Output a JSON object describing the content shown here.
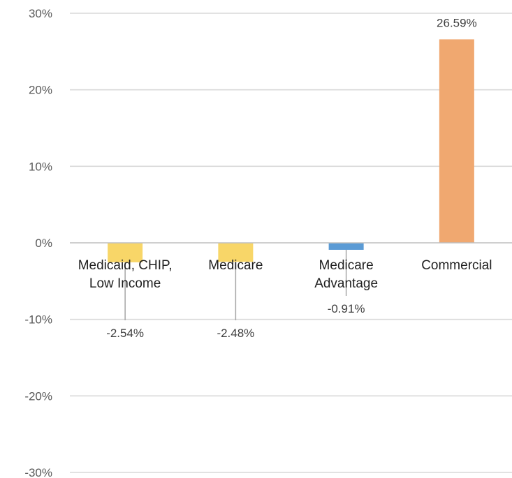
{
  "chart_data": {
    "type": "bar",
    "categories": [
      [
        "Medicaid, CHIP,",
        "Low Income"
      ],
      [
        "Medicare"
      ],
      [
        "Medicare",
        "Advantage"
      ],
      [
        "Commercial"
      ]
    ],
    "values": [
      -2.54,
      -2.48,
      -0.91,
      26.59
    ],
    "data_labels": [
      "-2.54%",
      "-2.48%",
      "-0.91%",
      "26.59%"
    ],
    "colors": [
      "#F8D668",
      "#F8D668",
      "#5B9BD5",
      "#F0A870"
    ],
    "ylim": [
      -30,
      30
    ],
    "yticks": [
      30,
      20,
      10,
      0,
      -10,
      -20,
      -30
    ],
    "ytick_labels": [
      "30%",
      "20%",
      "10%",
      "0%",
      "-10%",
      "-20%",
      "-30%"
    ],
    "grid": true,
    "legend": false
  }
}
